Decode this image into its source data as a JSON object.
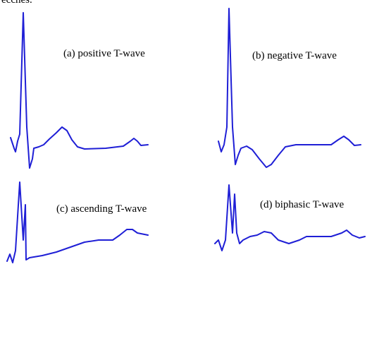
{
  "header_fragment": "ecches.",
  "panels": [
    {
      "label": "(a) positive T-wave"
    },
    {
      "label": "(b) negative T-wave"
    },
    {
      "label": "(c) ascending T-wave"
    },
    {
      "label": "(d) biphasic T-wave"
    }
  ]
}
